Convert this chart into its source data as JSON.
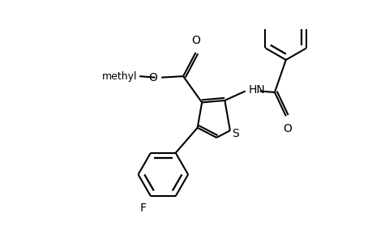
{
  "bg_color": "#ffffff",
  "line_color": "#000000",
  "bond_width": 1.5,
  "figsize": [
    4.6,
    3.0
  ],
  "dpi": 100,
  "xlim": [
    0,
    460
  ],
  "ylim": [
    0,
    300
  ]
}
